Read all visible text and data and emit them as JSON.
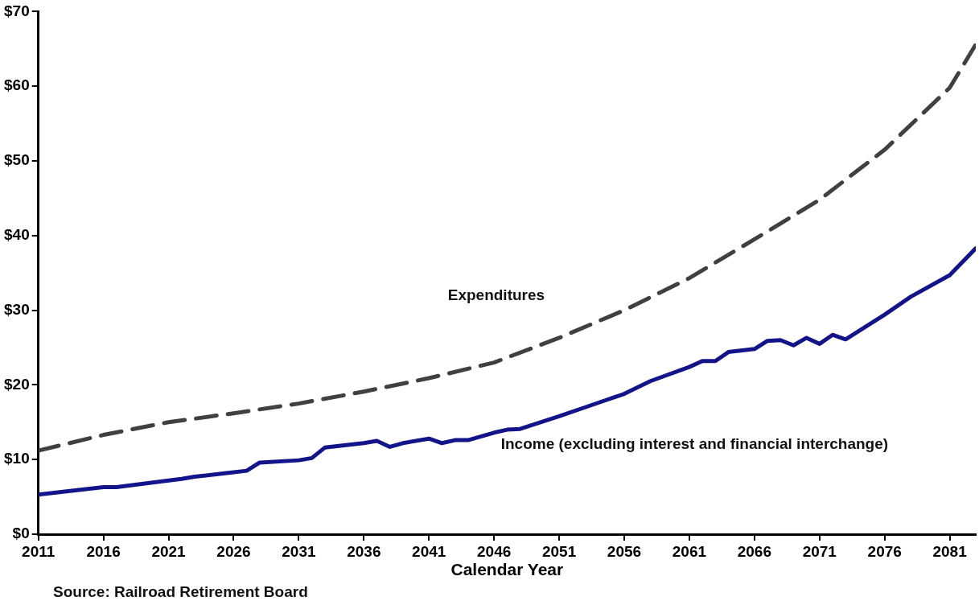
{
  "chart_data": {
    "type": "line",
    "xlabel": "Calendar Year",
    "xlim": [
      2011,
      2083
    ],
    "xticks": [
      2011,
      2016,
      2021,
      2026,
      2031,
      2036,
      2041,
      2046,
      2051,
      2056,
      2061,
      2066,
      2071,
      2076,
      2081
    ],
    "ylim": [
      0,
      70
    ],
    "yticks": [
      {
        "value": 0,
        "label": "$0"
      },
      {
        "value": 10,
        "label": "$10"
      },
      {
        "value": 20,
        "label": "$20"
      },
      {
        "value": 30,
        "label": "$30"
      },
      {
        "value": 40,
        "label": "$40"
      },
      {
        "value": 50,
        "label": "$50"
      },
      {
        "value": 60,
        "label": "$60"
      },
      {
        "value": 70,
        "label": "$70"
      }
    ],
    "grid": false,
    "legend": false,
    "marker": "none",
    "series": [
      {
        "name": "Expenditures",
        "color": "#404040",
        "line_style": "dashed",
        "x": [
          2011,
          2016,
          2021,
          2026,
          2031,
          2036,
          2041,
          2046,
          2051,
          2056,
          2061,
          2066,
          2071,
          2076,
          2081,
          2083
        ],
        "values": [
          11.2,
          13.3,
          15.0,
          16.2,
          17.5,
          19.1,
          20.9,
          23.0,
          26.3,
          30.0,
          34.3,
          39.5,
          44.8,
          51.5,
          59.8,
          65.6
        ]
      },
      {
        "name": "Income (excluding interest and financial interchange)",
        "color": "#14148a",
        "line_style": "solid",
        "x": [
          2011,
          2016,
          2017,
          2021,
          2022,
          2023,
          2026,
          2027,
          2028,
          2031,
          2032,
          2033,
          2036,
          2037,
          2038,
          2039,
          2041,
          2042,
          2043,
          2044,
          2046,
          2047,
          2048,
          2051,
          2053,
          2056,
          2058,
          2061,
          2062,
          2063,
          2064,
          2066,
          2067,
          2068,
          2069,
          2070,
          2071,
          2072,
          2073,
          2076,
          2078,
          2081,
          2083
        ],
        "values": [
          5.3,
          6.3,
          6.3,
          7.2,
          7.4,
          7.7,
          8.3,
          8.5,
          9.6,
          9.9,
          10.2,
          11.6,
          12.2,
          12.5,
          11.7,
          12.2,
          12.8,
          12.2,
          12.6,
          12.6,
          13.6,
          14.0,
          14.1,
          15.8,
          17.0,
          18.8,
          20.5,
          22.4,
          23.2,
          23.2,
          24.4,
          24.8,
          25.9,
          26.0,
          25.3,
          26.3,
          25.5,
          26.7,
          26.1,
          29.4,
          31.8,
          34.7,
          38.3
        ]
      }
    ],
    "annotations": [
      "Source: Railroad Retirement Board"
    ]
  }
}
